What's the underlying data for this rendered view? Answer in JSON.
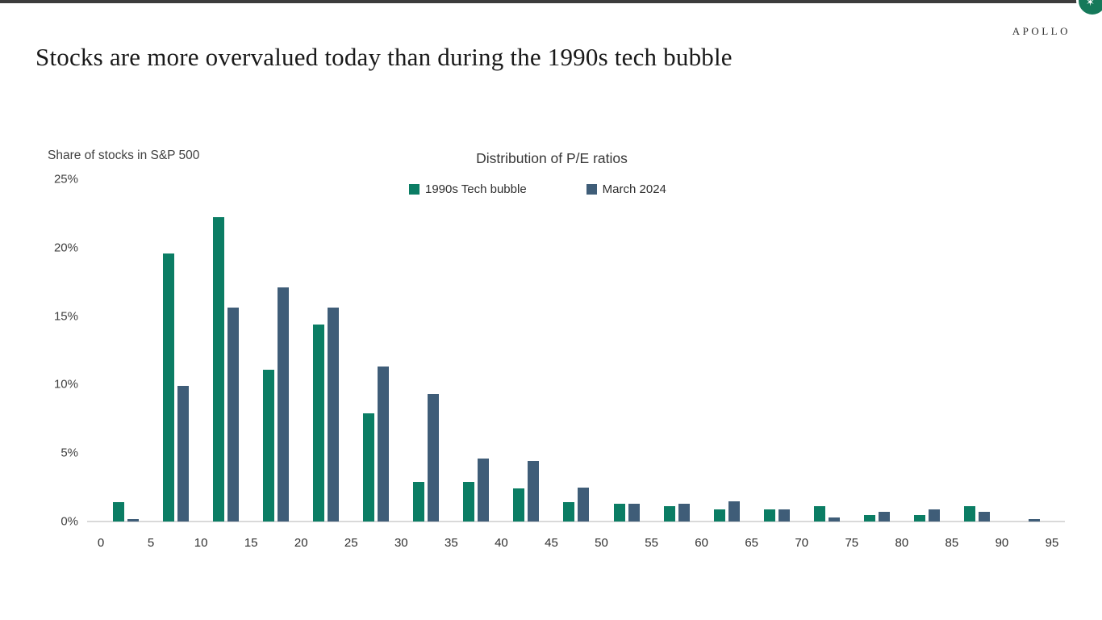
{
  "page": {
    "logo": "APOLLO",
    "title": "Stocks are more overvalued today than during the 1990s tech bubble",
    "corner_widget_glyph": "✶"
  },
  "chart_data": {
    "type": "bar",
    "title": "Distribution of P/E ratios",
    "ylabel": "Share of stocks in S&P 500",
    "xlabel": "",
    "bins": [
      "0-5",
      "5-10",
      "10-15",
      "15-20",
      "20-25",
      "25-30",
      "30-35",
      "35-40",
      "40-45",
      "45-50",
      "50-55",
      "55-60",
      "60-65",
      "65-70",
      "70-75",
      "75-80",
      "80-85",
      "85-90",
      "90-95"
    ],
    "x_ticks": [
      0,
      5,
      10,
      15,
      20,
      25,
      30,
      35,
      40,
      45,
      50,
      55,
      60,
      65,
      70,
      75,
      80,
      85,
      90,
      95
    ],
    "y_ticks": [
      0,
      5,
      10,
      15,
      20,
      25
    ],
    "y_tick_suffix": "%",
    "ylim": [
      0,
      25
    ],
    "grid": false,
    "legend_position": "top-center",
    "series": [
      {
        "name": "1990s Tech bubble",
        "color": "#0b7d64",
        "values": [
          1.4,
          19.6,
          22.2,
          11.1,
          14.4,
          7.9,
          2.9,
          2.9,
          2.4,
          1.4,
          1.3,
          1.1,
          0.9,
          0.9,
          1.1,
          0.5,
          0.5,
          1.1,
          0
        ]
      },
      {
        "name": "March 2024",
        "color": "#3f5d78",
        "values": [
          0.2,
          9.9,
          15.6,
          17.1,
          15.6,
          11.3,
          9.3,
          4.6,
          4.4,
          2.5,
          1.3,
          1.3,
          1.5,
          0.9,
          0.3,
          0.7,
          0.9,
          0.7,
          0.2
        ]
      }
    ],
    "colors": {
      "axis_line": "#d9d9d9",
      "label_text": "#3f3f3f",
      "brand_accent": "#15795a"
    }
  }
}
